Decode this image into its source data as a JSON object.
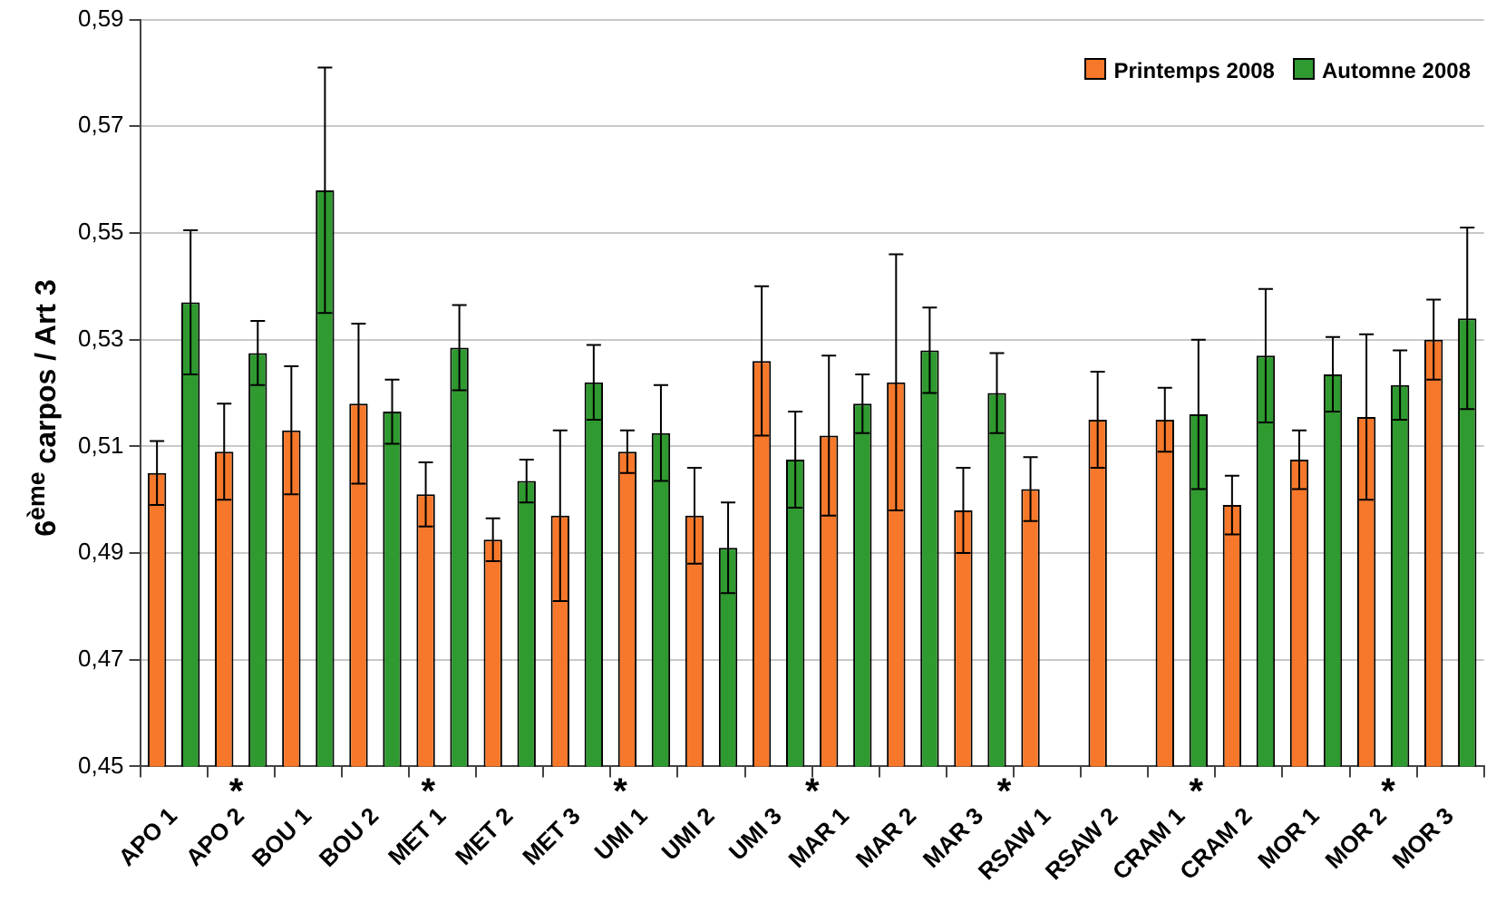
{
  "chart_data": {
    "type": "bar",
    "ylabel": "6$^{ème}$ carpos / Art 3",
    "categories": [
      "APO 1",
      "APO 2",
      "BOU 1",
      "BOU 2",
      "MET 1",
      "MET 2",
      "MET 3",
      "UMI 1",
      "UMI 2",
      "UMI 3",
      "MAR 1",
      "MAR 2",
      "MAR 3",
      "RSAW 1",
      "RSAW 2",
      "CRAM 1",
      "CRAM 2",
      "MOR 1",
      "MOR 2",
      "MOR 3"
    ],
    "series": [
      {
        "name": "Printemps 2008",
        "color": "#f7782a",
        "values": [
          0.505,
          0.509,
          0.513,
          0.518,
          0.501,
          0.4925,
          0.497,
          0.509,
          0.497,
          0.526,
          0.512,
          0.522,
          0.498,
          0.502,
          0.515,
          0.515,
          0.499,
          0.5075,
          0.5155,
          0.53
        ],
        "errors": [
          0.006,
          0.009,
          0.012,
          0.015,
          0.006,
          0.004,
          0.016,
          0.004,
          0.009,
          0.014,
          0.015,
          0.024,
          0.008,
          0.006,
          0.009,
          0.006,
          0.0055,
          0.0055,
          0.0155,
          0.0075
        ]
      },
      {
        "name": "Automne 2008",
        "color": "#2f9a2f",
        "values": [
          0.537,
          0.5275,
          0.558,
          0.5165,
          0.5285,
          0.5035,
          0.522,
          0.5125,
          0.491,
          0.5075,
          0.518,
          0.528,
          0.52,
          null,
          null,
          0.516,
          0.527,
          0.5235,
          0.5215,
          0.534
        ],
        "errors": [
          0.0135,
          0.006,
          0.023,
          0.006,
          0.008,
          0.004,
          0.007,
          0.009,
          0.0085,
          0.009,
          0.0055,
          0.008,
          0.0075,
          null,
          null,
          0.014,
          0.0125,
          0.007,
          0.0065,
          0.017
        ]
      }
    ],
    "ylim": [
      0.45,
      0.59
    ],
    "yticks": [
      {
        "value": 0.45,
        "label": "0,45"
      },
      {
        "value": 0.47,
        "label": "0,47"
      },
      {
        "value": 0.49,
        "label": "0,49"
      },
      {
        "value": 0.51,
        "label": "0,51"
      },
      {
        "value": 0.53,
        "label": "0,53"
      },
      {
        "value": 0.55,
        "label": "0,55"
      },
      {
        "value": 0.57,
        "label": "0,57"
      },
      {
        "value": 0.59,
        "label": "0,59"
      }
    ],
    "grid": "y",
    "legend": "top right",
    "annotations": [
      "*",
      "*",
      "*",
      "*",
      "*",
      "*",
      "*"
    ]
  }
}
